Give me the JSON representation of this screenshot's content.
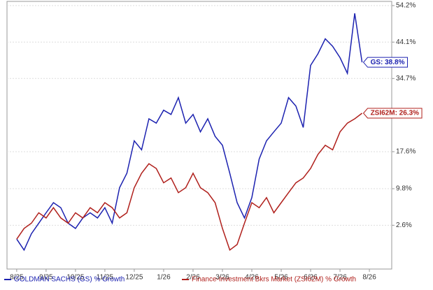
{
  "chart_data": {
    "type": "line",
    "log_scale": true,
    "grid": true,
    "x": [
      0,
      0.25,
      0.5,
      0.75,
      1,
      1.25,
      1.5,
      1.75,
      2,
      2.25,
      2.5,
      2.75,
      3,
      3.25,
      3.5,
      3.75,
      4,
      4.25,
      4.5,
      4.75,
      5,
      5.25,
      5.5,
      5.75,
      6,
      6.25,
      6.5,
      6.75,
      7,
      7.25,
      7.5,
      7.75,
      8,
      8.25,
      8.5,
      8.75,
      9,
      9.25,
      9.5,
      9.75,
      10,
      10.25,
      10.5,
      10.75,
      11,
      11.25,
      11.5,
      11.75
    ],
    "xlim": [
      -0.33,
      12.76
    ],
    "xticks": [
      {
        "value": 0,
        "label": "8/25"
      },
      {
        "value": 1,
        "label": "9/25"
      },
      {
        "value": 2,
        "label": "10/25"
      },
      {
        "value": 3,
        "label": "11/25"
      },
      {
        "value": 4,
        "label": "12/25"
      },
      {
        "value": 5,
        "label": "1/26"
      },
      {
        "value": 6,
        "label": "2/26"
      },
      {
        "value": 7,
        "label": "3/26"
      },
      {
        "value": 8,
        "label": "4/26"
      },
      {
        "value": 9,
        "label": "5/26"
      },
      {
        "value": 10,
        "label": "6/26"
      },
      {
        "value": 11,
        "label": "7/26"
      },
      {
        "value": 12,
        "label": "8/26"
      }
    ],
    "ylim": [
      -5.4,
      55.4
    ],
    "yticks": [
      {
        "value": 2.6,
        "label": "2.6%"
      },
      {
        "value": 9.8,
        "label": "9.8%"
      },
      {
        "value": 17.6,
        "label": "17.6%"
      },
      {
        "value": 34.7,
        "label": "34.7%"
      },
      {
        "value": 44.1,
        "label": "44.1%"
      },
      {
        "value": 54.2,
        "label": "54.2%"
      }
    ],
    "series": [
      {
        "name": "GOLDMAN SACHS (GS) % Growth",
        "color": "#1c22b0",
        "end_label": "GS: 38.8%",
        "values": [
          0,
          -2,
          1,
          3,
          5,
          7,
          6,
          3,
          2,
          4,
          5,
          4,
          6,
          3,
          10,
          13,
          20,
          18,
          25,
          24,
          27,
          26,
          30,
          24,
          26,
          22,
          25,
          21,
          19,
          13,
          7,
          4,
          8,
          16,
          20,
          22,
          24,
          30,
          28,
          23,
          38,
          41,
          45,
          43,
          40,
          36,
          52,
          38.8
        ]
      },
      {
        "name": "Finance-Investment Bkrs Market (ZSI62M) % Growth",
        "color": "#b0201c",
        "end_label": "ZSI62M: 26.3%",
        "values": [
          0,
          2,
          3,
          5,
          4,
          6,
          4,
          3,
          5,
          4,
          6,
          5,
          7,
          6,
          4,
          5,
          10,
          13,
          15,
          14,
          11,
          12,
          9,
          10,
          13,
          10,
          9,
          7,
          2,
          -2,
          -1,
          3,
          7,
          6,
          8,
          5,
          7,
          9,
          11,
          12,
          14,
          17,
          19,
          18,
          22,
          24,
          25,
          26.3
        ]
      }
    ]
  }
}
